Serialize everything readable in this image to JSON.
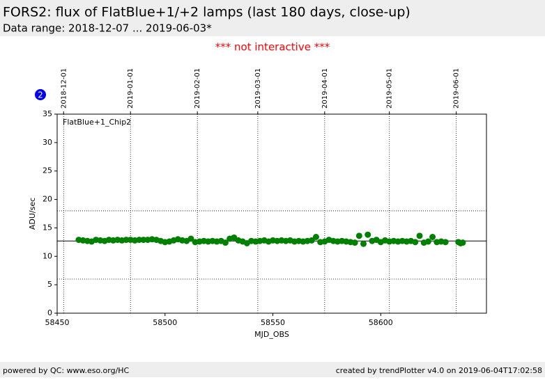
{
  "header": {
    "title": "FORS2: flux of FlatBlue+1/+2 lamps (last 180 days, close-up)",
    "subtitle": "Data range: 2018-12-07 ... 2019-06-03*"
  },
  "notice": "*** not interactive ***",
  "badge": "2",
  "footer": {
    "left": "powered by QC: www.eso.org/HC",
    "right": "created by trendPlotter v4.0 on 2019-06-04T17:02:58"
  },
  "chart_data": {
    "type": "scatter",
    "xlabel": "MJD_OBS",
    "ylabel": "ADU/sec",
    "xlim": [
      58450,
      58649
    ],
    "ylim": [
      0,
      35
    ],
    "xticks": [
      58450,
      58500,
      58550,
      58600
    ],
    "yticks": [
      0,
      5,
      10,
      15,
      20,
      25,
      30,
      35
    ],
    "x2ticks": [
      {
        "value": 58453,
        "label": "2018-12-01"
      },
      {
        "value": 58484,
        "label": "2019-01-01"
      },
      {
        "value": 58515,
        "label": "2019-02-01"
      },
      {
        "value": 58543,
        "label": "2019-03-01"
      },
      {
        "value": 58574,
        "label": "2019-04-01"
      },
      {
        "value": 58604,
        "label": "2019-05-01"
      },
      {
        "value": 58635,
        "label": "2019-06-01"
      }
    ],
    "grid": true,
    "hlines": [
      {
        "value": 12.7,
        "style": "solid"
      },
      {
        "value": 18,
        "style": "dotted"
      },
      {
        "value": 6,
        "style": "dotted"
      }
    ],
    "series": [
      {
        "name": "FlatBlue+1_Chip2",
        "color": "#008000",
        "x": [
          58460,
          58462,
          58464,
          58466,
          58468,
          58470,
          58472,
          58474,
          58476,
          58478,
          58480,
          58482,
          58484,
          58486,
          58488,
          58490,
          58492,
          58494,
          58496,
          58498,
          58500,
          58502,
          58504,
          58506,
          58508,
          58510,
          58512,
          58514,
          58516,
          58518,
          58520,
          58522,
          58524,
          58526,
          58528,
          58530,
          58532,
          58534,
          58536,
          58538,
          58540,
          58542,
          58544,
          58546,
          58548,
          58550,
          58552,
          58554,
          58556,
          58558,
          58560,
          58562,
          58564,
          58566,
          58568,
          58570,
          58572,
          58574,
          58576,
          58578,
          58580,
          58582,
          58584,
          58586,
          58588,
          58590,
          58592,
          58594,
          58596,
          58598,
          58600,
          58602,
          58604,
          58606,
          58608,
          58610,
          58612,
          58614,
          58616,
          58618,
          58620,
          58622,
          58624,
          58626,
          58628,
          58630,
          58636,
          58637,
          58638
        ],
        "values": [
          12.9,
          12.8,
          12.7,
          12.6,
          12.9,
          12.8,
          12.7,
          12.9,
          12.8,
          12.9,
          12.8,
          12.9,
          12.9,
          12.8,
          12.9,
          12.9,
          12.9,
          13.0,
          12.9,
          12.7,
          12.5,
          12.6,
          12.8,
          13.0,
          12.8,
          12.7,
          13.1,
          12.5,
          12.6,
          12.7,
          12.6,
          12.7,
          12.6,
          12.7,
          12.4,
          13.1,
          13.3,
          12.8,
          12.6,
          12.3,
          12.7,
          12.6,
          12.7,
          12.8,
          12.6,
          12.8,
          12.7,
          12.8,
          12.7,
          12.8,
          12.6,
          12.7,
          12.6,
          12.7,
          12.8,
          13.4,
          12.5,
          12.6,
          12.9,
          12.7,
          12.6,
          12.7,
          12.6,
          12.5,
          12.4,
          13.6,
          12.2,
          13.8,
          12.7,
          12.9,
          12.5,
          12.8,
          12.6,
          12.7,
          12.6,
          12.7,
          12.6,
          12.7,
          12.5,
          13.6,
          12.4,
          12.6,
          13.4,
          12.5,
          12.6,
          12.5,
          12.5,
          12.3,
          12.4
        ]
      }
    ]
  }
}
